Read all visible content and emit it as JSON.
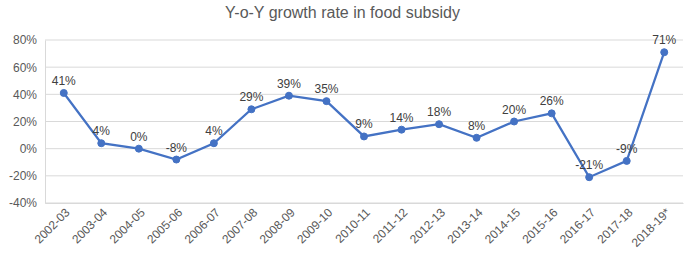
{
  "chart_data": {
    "type": "line",
    "title": "Y-o-Y growth rate in food subsidy",
    "categories": [
      "2002-03",
      "2003-04",
      "2004-05",
      "2005-06",
      "2006-07",
      "2007-08",
      "2008-09",
      "2009-10",
      "2010-11",
      "2011-12",
      "2012-13",
      "2013-14",
      "2014-15",
      "2015-16",
      "2016-17",
      "2017-18",
      "2018-19*"
    ],
    "values": [
      41,
      4,
      0,
      -8,
      4,
      29,
      39,
      35,
      9,
      14,
      18,
      8,
      20,
      26,
      -21,
      -9,
      71
    ],
    "value_labels": [
      "41%",
      "4%",
      "0%",
      "-8%",
      "4%",
      "29%",
      "39%",
      "35%",
      "9%",
      "14%",
      "18%",
      "8%",
      "20%",
      "26%",
      "-21%",
      "-9%",
      "71%"
    ],
    "color": "#4472c4",
    "marker": "circle",
    "data_labels": true,
    "grid": true,
    "ylim": [
      -40,
      80
    ],
    "yticks": [
      {
        "value": -40,
        "label": "-40%"
      },
      {
        "value": -20,
        "label": "-20%"
      },
      {
        "value": 0,
        "label": "0%"
      },
      {
        "value": 20,
        "label": "20%"
      },
      {
        "value": 40,
        "label": "40%"
      },
      {
        "value": 60,
        "label": "60%"
      },
      {
        "value": 80,
        "label": "80%"
      }
    ]
  }
}
